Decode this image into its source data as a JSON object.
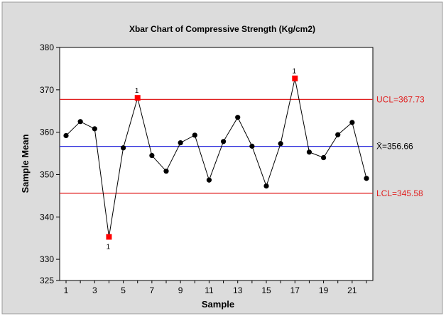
{
  "chart_data": {
    "type": "line",
    "title": "Xbar Chart of Compressive Strength (Kg/cm2)",
    "xlabel": "Sample",
    "ylabel": "Sample Mean",
    "xlim": [
      0.7,
      22.3
    ],
    "ylim": [
      325,
      380
    ],
    "x_ticks": [
      1,
      3,
      5,
      7,
      9,
      11,
      13,
      15,
      17,
      19,
      21
    ],
    "y_ticks": [
      325,
      330,
      340,
      350,
      360,
      370,
      380
    ],
    "x": [
      1,
      2,
      3,
      4,
      5,
      6,
      7,
      8,
      9,
      10,
      11,
      12,
      13,
      14,
      15,
      16,
      17,
      18,
      19,
      20,
      21,
      22
    ],
    "series": [
      {
        "values": [
          359.2,
          362.5,
          360.8,
          335.3,
          356.3,
          368.1,
          354.5,
          350.8,
          357.5,
          359.3,
          348.7,
          357.8,
          363.5,
          356.7,
          347.3,
          357.3,
          372.7,
          355.3,
          354.0,
          359.4,
          362.3,
          349.1
        ]
      }
    ],
    "out_of_control_points": [
      4,
      6,
      17
    ],
    "flag_label": "1",
    "limits": [
      {
        "label": "UCL=367.73",
        "value": 367.73,
        "color": "#e02020"
      },
      {
        "label": "X̄=356.66",
        "value": 356.66,
        "color": "#2a2adc"
      },
      {
        "label": "LCL=345.58",
        "value": 345.58,
        "color": "#e02020"
      }
    ],
    "colors": {
      "background": "#dcdcdc",
      "plot_area": "#ffffff",
      "points": "#000000",
      "flagged_points": "#ff0000",
      "center_line": "#2a2adc",
      "control_limits": "#e02020"
    },
    "grid": false
  }
}
